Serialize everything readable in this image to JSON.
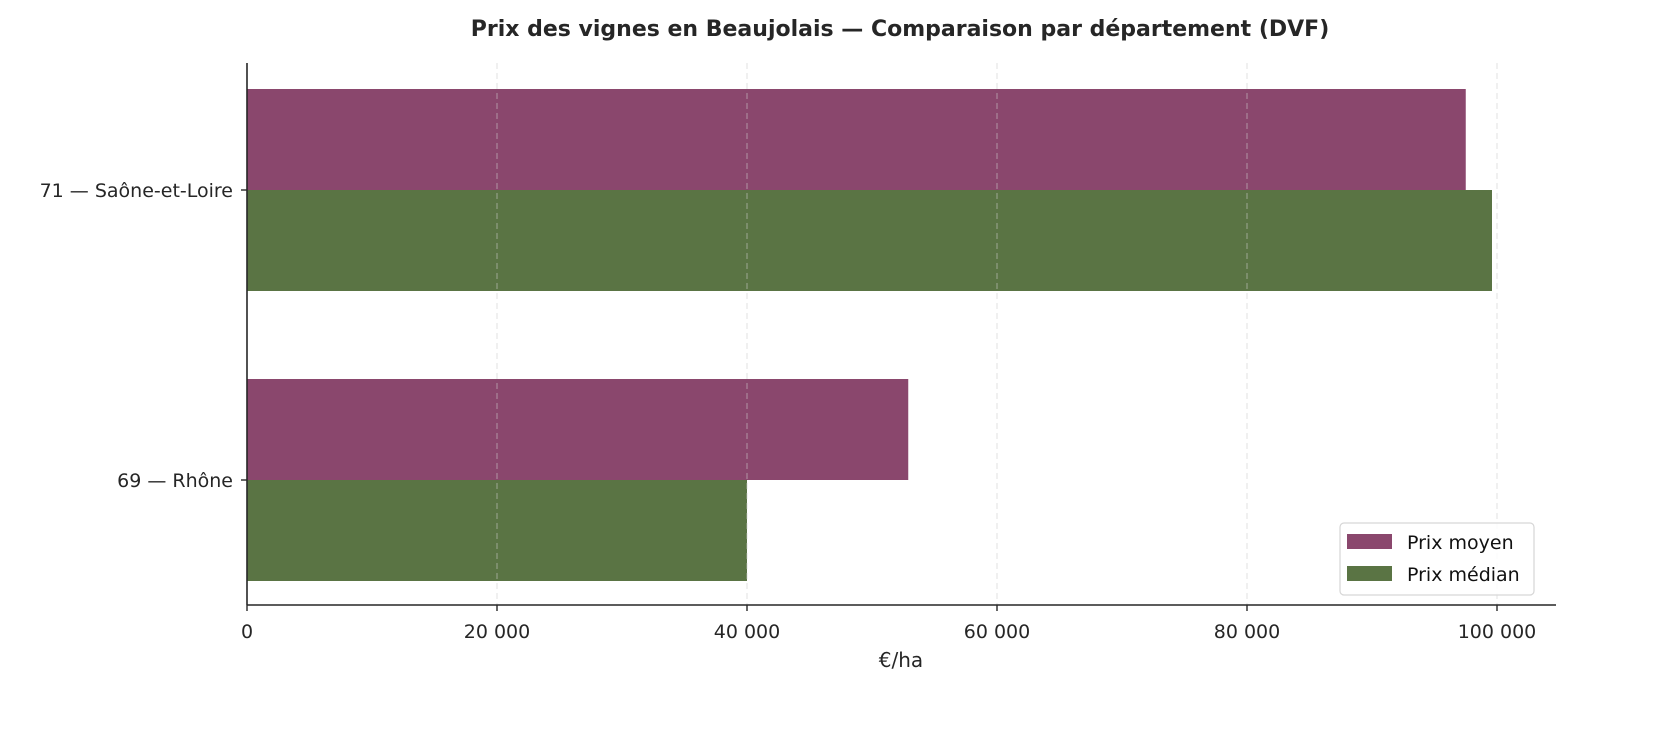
{
  "chart_data": {
    "type": "bar",
    "orientation": "horizontal",
    "title": "Prix des vignes en Beaujolais — Comparaison par département (DVF)",
    "xlabel": "€/ha",
    "ylabel": "",
    "categories": [
      "71 — Saône-et-Loire",
      "69 — Rhône"
    ],
    "series": [
      {
        "name": "Prix moyen",
        "color": "#8a476d",
        "values": [
          97500,
          52900
        ]
      },
      {
        "name": "Prix médian",
        "color": "#5a7444",
        "values": [
          99600,
          40000
        ]
      }
    ],
    "xlim": [
      0,
      104700
    ],
    "xticks": [
      0,
      20000,
      40000,
      60000,
      80000,
      100000
    ],
    "xtick_labels": [
      "0",
      "20 000",
      "40 000",
      "60 000",
      "80 000",
      "100 000"
    ],
    "grid": {
      "axis": "x",
      "style": "dashed",
      "color": "#dddddd"
    },
    "legend": {
      "position": "lower right",
      "entries": [
        "Prix moyen",
        "Prix médian"
      ]
    }
  }
}
